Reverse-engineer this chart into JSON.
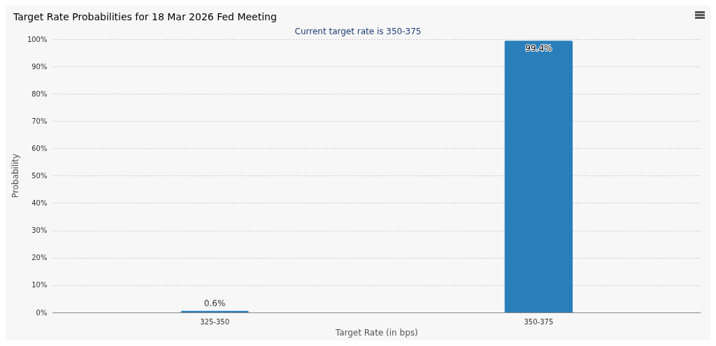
{
  "chart_data": {
    "type": "bar",
    "title": "Target Rate Probabilities for 18 Mar 2026 Fed Meeting",
    "subtitle": "Current target rate is 350-375",
    "xlabel": "Target Rate (in bps)",
    "ylabel": "Probability",
    "categories": [
      "325-350",
      "350-375"
    ],
    "values": [
      0.6,
      99.4
    ],
    "color": "#2a7fba",
    "value_labels": [
      "0.6%",
      "99.4%"
    ],
    "ylim": [
      0,
      100
    ],
    "yticks": [
      {
        "value": 0,
        "label": "0%"
      },
      {
        "value": 10,
        "label": "10%"
      },
      {
        "value": 20,
        "label": "20%"
      },
      {
        "value": 30,
        "label": "30%"
      },
      {
        "value": 40,
        "label": "40%"
      },
      {
        "value": 50,
        "label": "50%"
      },
      {
        "value": 60,
        "label": "60%"
      },
      {
        "value": 70,
        "label": "70%"
      },
      {
        "value": 80,
        "label": "80%"
      },
      {
        "value": 90,
        "label": "90%"
      },
      {
        "value": 100,
        "label": "100%"
      }
    ],
    "grid": "y"
  }
}
